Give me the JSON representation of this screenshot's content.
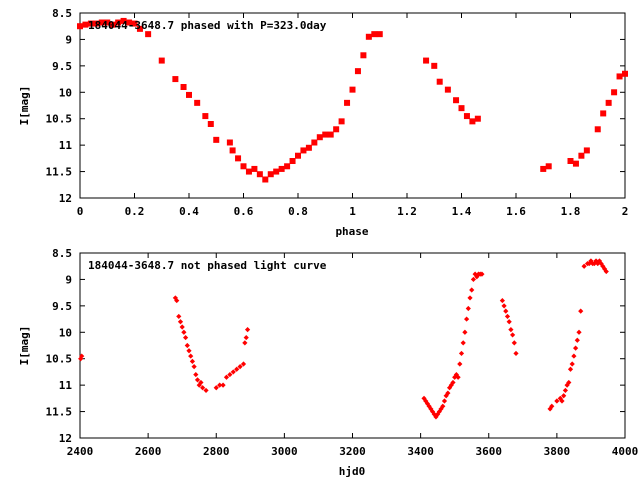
{
  "chart_data": [
    {
      "type": "scatter",
      "title": "184044-3648.7 phased with P=323.0day",
      "xlabel": "phase",
      "ylabel": "I[mag]",
      "xlim": [
        0,
        2
      ],
      "ylim": [
        12,
        8.5
      ],
      "y_inverted": true,
      "xticks": [
        0,
        0.2,
        0.4,
        0.6,
        0.8,
        1,
        1.2,
        1.4,
        1.6,
        1.8,
        2
      ],
      "yticks": [
        8.5,
        9,
        9.5,
        10,
        10.5,
        11,
        11.5,
        12
      ],
      "xtick_labels": [
        "0",
        "0.2",
        "0.4",
        "0.6",
        "0.8",
        "1",
        "1.2",
        "1.4",
        "1.6",
        "1.8",
        "2"
      ],
      "ytick_labels": [
        "8.5",
        "9",
        "9.5",
        "10",
        "10.5",
        "11",
        "11.5",
        "12"
      ],
      "marker": "filled-square",
      "color": "#ff0000",
      "grid": false,
      "series": [
        {
          "x": [
            0.0,
            0.02,
            0.04,
            0.06,
            0.08,
            0.1,
            0.12,
            0.14,
            0.16,
            0.18,
            0.2,
            0.22,
            0.25,
            0.3,
            0.35,
            0.38,
            0.4,
            0.43,
            0.46,
            0.48,
            0.5,
            0.55,
            0.56,
            0.58,
            0.6,
            0.62,
            0.64,
            0.66,
            0.68,
            0.7,
            0.72,
            0.74,
            0.76,
            0.78,
            0.8,
            0.82,
            0.84,
            0.86,
            0.88,
            0.9,
            0.92,
            0.94,
            0.96,
            0.98,
            1.0,
            1.02,
            1.04,
            1.06,
            1.08,
            1.1,
            1.27,
            1.3,
            1.32,
            1.35,
            1.38,
            1.4,
            1.42,
            1.44,
            1.46,
            1.7,
            1.72,
            1.8,
            1.82,
            1.84,
            1.86,
            1.9,
            1.92,
            1.94,
            1.96,
            1.98,
            2.0
          ],
          "y": [
            8.75,
            8.72,
            8.7,
            8.7,
            8.68,
            8.68,
            8.72,
            8.68,
            8.65,
            8.68,
            8.7,
            8.8,
            8.9,
            9.4,
            9.75,
            9.9,
            10.05,
            10.2,
            10.45,
            10.6,
            10.9,
            10.95,
            11.1,
            11.25,
            11.4,
            11.5,
            11.45,
            11.55,
            11.65,
            11.55,
            11.5,
            11.45,
            11.4,
            11.3,
            11.2,
            11.1,
            11.05,
            10.95,
            10.85,
            10.8,
            10.8,
            10.7,
            10.55,
            10.2,
            9.95,
            9.6,
            9.3,
            8.95,
            8.9,
            8.9,
            9.4,
            9.5,
            9.8,
            9.95,
            10.15,
            10.3,
            10.45,
            10.55,
            10.5,
            11.45,
            11.4,
            11.3,
            11.35,
            11.2,
            11.1,
            10.7,
            10.4,
            10.2,
            10.0,
            9.7,
            9.65
          ]
        }
      ]
    },
    {
      "type": "scatter",
      "title": "184044-3648.7 not phased light curve",
      "xlabel": "hjd0",
      "ylabel": "I[mag]",
      "xlim": [
        2400,
        4000
      ],
      "ylim": [
        12,
        8.5
      ],
      "y_inverted": true,
      "xticks": [
        2400,
        2600,
        2800,
        3000,
        3200,
        3400,
        3600,
        3800,
        4000
      ],
      "yticks": [
        8.5,
        9,
        9.5,
        10,
        10.5,
        11,
        11.5,
        12
      ],
      "xtick_labels": [
        "2400",
        "2600",
        "2800",
        "3000",
        "3200",
        "3400",
        "3600",
        "3800",
        "4000"
      ],
      "ytick_labels": [
        "8.5",
        "9",
        "9.5",
        "10",
        "10.5",
        "11",
        "11.5",
        "12"
      ],
      "marker": "filled-diamond",
      "color": "#ff0000",
      "grid": false,
      "series": [
        {
          "x": [
            2402,
            2405,
            2680,
            2684,
            2690,
            2695,
            2700,
            2705,
            2710,
            2715,
            2720,
            2725,
            2730,
            2735,
            2740,
            2745,
            2750,
            2755,
            2760,
            2770,
            2800,
            2810,
            2820,
            2830,
            2840,
            2850,
            2860,
            2870,
            2880,
            2884,
            2888,
            2892,
            3410,
            3415,
            3420,
            3425,
            3430,
            3435,
            3440,
            3445,
            3450,
            3455,
            3460,
            3465,
            3470,
            3475,
            3480,
            3485,
            3490,
            3495,
            3500,
            3505,
            3510,
            3515,
            3520,
            3525,
            3530,
            3535,
            3540,
            3545,
            3550,
            3555,
            3560,
            3565,
            3570,
            3575,
            3580,
            3640,
            3645,
            3650,
            3655,
            3660,
            3665,
            3670,
            3675,
            3680,
            3780,
            3785,
            3800,
            3810,
            3815,
            3820,
            3825,
            3830,
            3835,
            3840,
            3845,
            3850,
            3855,
            3860,
            3865,
            3870,
            3880,
            3890,
            3895,
            3900,
            3905,
            3910,
            3915,
            3920,
            3925,
            3930,
            3935,
            3940,
            3945
          ],
          "y": [
            10.5,
            10.45,
            9.35,
            9.4,
            9.7,
            9.8,
            9.9,
            10.0,
            10.1,
            10.25,
            10.35,
            10.45,
            10.55,
            10.65,
            10.8,
            10.9,
            11.0,
            10.95,
            11.05,
            11.1,
            11.05,
            11.0,
            11.0,
            10.85,
            10.8,
            10.75,
            10.7,
            10.65,
            10.6,
            10.2,
            10.1,
            9.95,
            11.25,
            11.3,
            11.35,
            11.4,
            11.45,
            11.5,
            11.55,
            11.6,
            11.55,
            11.5,
            11.45,
            11.4,
            11.3,
            11.2,
            11.15,
            11.05,
            11.0,
            10.95,
            10.85,
            10.8,
            10.85,
            10.6,
            10.4,
            10.2,
            10.0,
            9.75,
            9.55,
            9.35,
            9.2,
            9.0,
            8.9,
            8.95,
            8.9,
            8.9,
            8.9,
            9.4,
            9.5,
            9.6,
            9.7,
            9.8,
            9.95,
            10.05,
            10.2,
            10.4,
            11.45,
            11.4,
            11.3,
            11.25,
            11.3,
            11.2,
            11.1,
            11.0,
            10.95,
            10.7,
            10.6,
            10.45,
            10.3,
            10.15,
            10.0,
            9.6,
            8.75,
            8.7,
            8.7,
            8.65,
            8.7,
            8.7,
            8.65,
            8.7,
            8.65,
            8.7,
            8.75,
            8.8,
            8.85
          ]
        }
      ]
    }
  ]
}
